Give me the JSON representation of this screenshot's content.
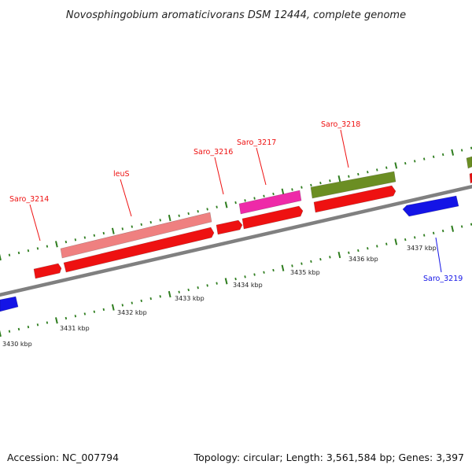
{
  "title": "Novosphingobium aromaticivorans DSM 12444, complete genome",
  "accession": "Accession: NC_007794",
  "topology": "Topology: circular; Length: 3,561,584 bp; Genes: 3,397",
  "colors": {
    "backbone": "#808080",
    "ticks": "#2e7d1e",
    "red": "#ee1111",
    "pink": "#ef8080",
    "magenta": "#ee2aa8",
    "olive": "#6b8e23",
    "blue": "#1414e6"
  },
  "scale_labels": [
    "3430 kbp",
    "3431 kbp",
    "3432 kbp",
    "3433 kbp",
    "3434 kbp",
    "3435 kbp",
    "3436 kbp",
    "3437 kbp"
  ],
  "gene_labels": [
    "Saro_3214",
    "leuS",
    "Saro_3216",
    "Saro_3217",
    "Saro_3218",
    "Saro_3219"
  ]
}
